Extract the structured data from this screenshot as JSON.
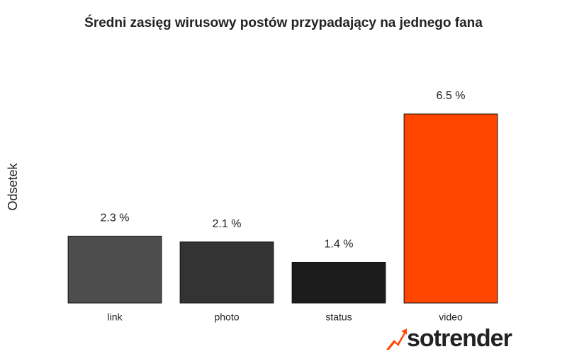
{
  "chart_data": {
    "type": "bar",
    "title": "Średni zasięg wirusowy postów przypadający na jednego fana",
    "y_label": "Odsetek",
    "categories": [
      "link",
      "photo",
      "status",
      "video"
    ],
    "values": [
      2.3,
      2.1,
      1.4,
      6.5
    ],
    "value_labels": [
      "2.3 %",
      "2.1 %",
      "1.4 %",
      "6.5 %"
    ],
    "colors": [
      "#4d4d4d",
      "#333333",
      "#1c1c1c",
      "#ff4500"
    ],
    "ylim": [
      0,
      6.5
    ],
    "logo": "sotrender"
  }
}
